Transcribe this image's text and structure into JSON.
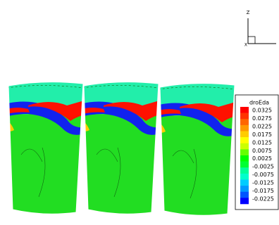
{
  "triad": {
    "vertical_label": "Z",
    "horizontal_label": "X"
  },
  "legend": {
    "title": "droEda",
    "levels": [
      "0.0325",
      "0.0275",
      "0.0225",
      "0.0175",
      "0.0125",
      "0.0075",
      "0.0025",
      "-0.0025",
      "-0.0075",
      "-0.0125",
      "-0.0175",
      "-0.0225"
    ],
    "colors": [
      "#ff0000",
      "#ff3300",
      "#ff6600",
      "#ff9900",
      "#ffcc00",
      "#ffff00",
      "#ccff00",
      "#66ff00",
      "#00ff00",
      "#00ff33",
      "#00ff99",
      "#00ffcc",
      "#00ccff",
      "#0099ff",
      "#0055ff",
      "#0000ff"
    ]
  }
}
